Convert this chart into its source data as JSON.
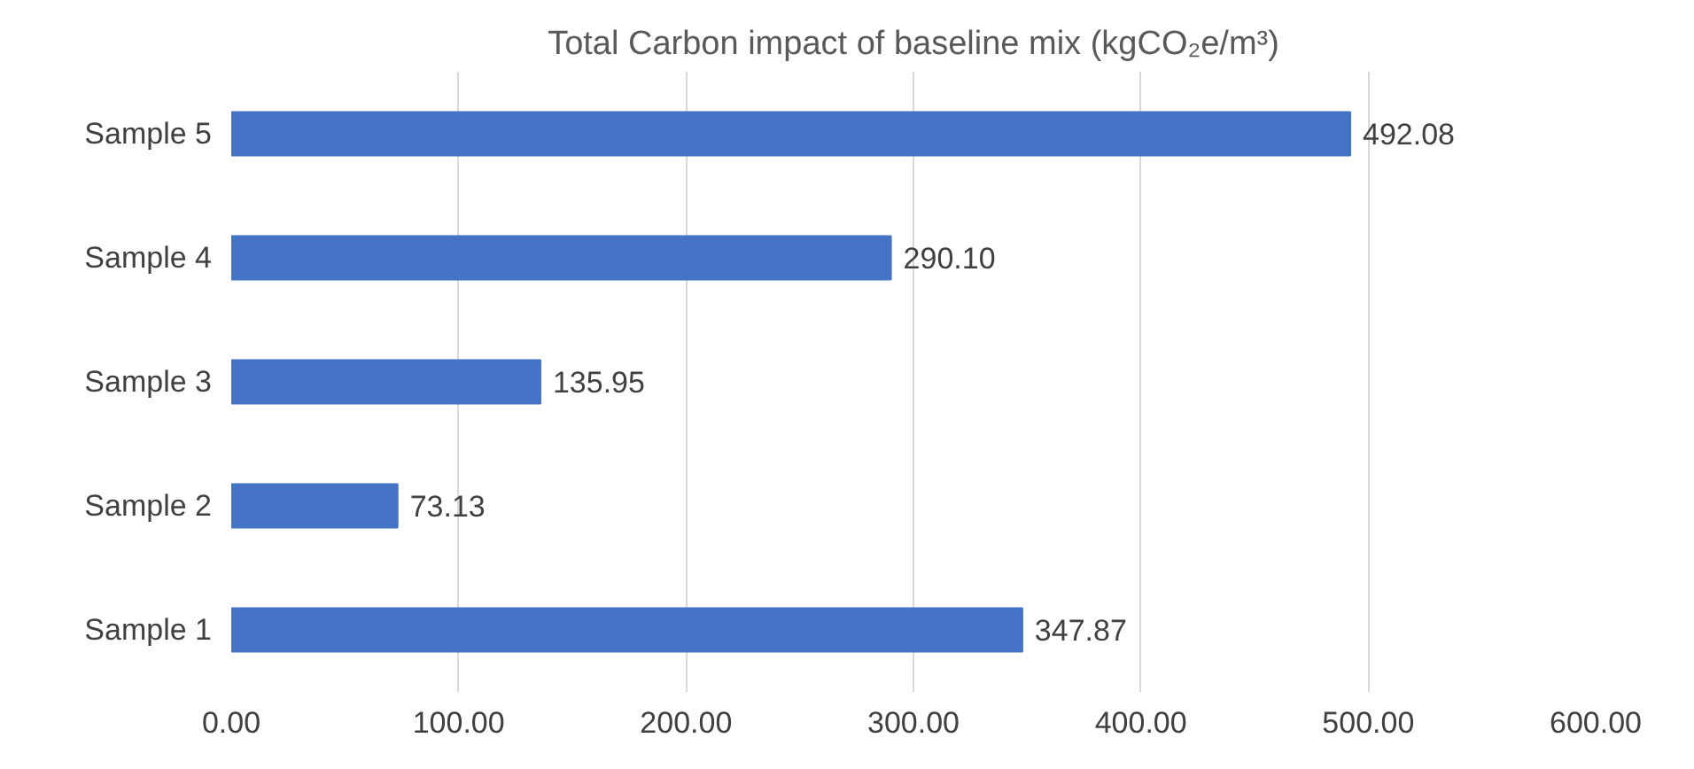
{
  "chart_data": {
    "type": "bar",
    "orientation": "horizontal",
    "title": "Total Carbon impact of baseline mix (kgCO₂e/m³)",
    "categories": [
      "Sample 5",
      "Sample 4",
      "Sample 3",
      "Sample 2",
      "Sample 1"
    ],
    "values": [
      492.08,
      290.1,
      135.95,
      73.13,
      347.87
    ],
    "value_labels": [
      "492.08",
      "290.10",
      "135.95",
      "73.13",
      "347.87"
    ],
    "color": "#4472c4",
    "xlim": [
      0,
      600
    ],
    "xticks": [
      {
        "value": 0,
        "label": "0.00"
      },
      {
        "value": 100,
        "label": "100.00"
      },
      {
        "value": 200,
        "label": "200.00"
      },
      {
        "value": 300,
        "label": "300.00"
      },
      {
        "value": 400,
        "label": "400.00"
      },
      {
        "value": 500,
        "label": "500.00"
      },
      {
        "value": 600,
        "label": "600.00"
      }
    ],
    "grid": "x"
  }
}
